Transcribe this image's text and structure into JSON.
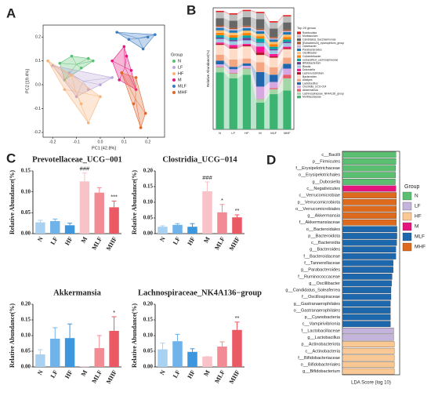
{
  "chart_data": [
    {
      "type": "scatter",
      "panel": "A",
      "xlabel": "PC1 [42.8%]",
      "ylabel": "PC2 [19.4%]",
      "legend_title": "Group",
      "xlim": [
        -0.24,
        0.27
      ],
      "ylim": [
        -0.22,
        0.25
      ],
      "xticks": [
        -0.2,
        -0.1,
        {
          "value": 0,
          "label": "0.0"
        },
        0.1,
        0.2
      ],
      "yticks": [
        -0.2,
        -0.1,
        {
          "value": 0,
          "label": "0.0"
        },
        0.1,
        0.2
      ],
      "series": [
        {
          "name": "N",
          "color": "#5bbf72",
          "x": [
            -0.17,
            -0.12,
            -0.05,
            -0.15,
            -0.03,
            -0.08
          ],
          "values": [
            0.09,
            0.12,
            0.11,
            0.02,
            0.1,
            0.07
          ]
        },
        {
          "name": "LF",
          "color": "#b9a6d8",
          "x": [
            -0.2,
            -0.13,
            -0.05,
            0.05,
            -0.1,
            0.0
          ],
          "values": [
            0.08,
            0.05,
            -0.02,
            0.03,
            -0.05,
            0.0
          ]
        },
        {
          "name": "HF",
          "color": "#f7b37a",
          "x": [
            -0.22,
            -0.15,
            -0.08,
            -0.05,
            -0.12,
            0.0
          ],
          "values": [
            0.1,
            -0.02,
            -0.08,
            -0.16,
            0.04,
            -0.05
          ]
        },
        {
          "name": "M",
          "color": "#e4157c",
          "x": [
            0.05,
            0.1,
            0.13,
            0.08,
            0.15,
            0.11
          ],
          "values": [
            0.1,
            0.16,
            0.06,
            0.02,
            -0.02,
            0.12
          ]
        },
        {
          "name": "MLF",
          "color": "#3a7cc3",
          "x": [
            0.07,
            0.2,
            0.18,
            0.12,
            0.23
          ],
          "values": [
            0.22,
            0.2,
            0.15,
            0.19,
            0.21
          ]
        },
        {
          "name": "MHF",
          "color": "#e0652a",
          "x": [
            0.09,
            0.14,
            0.19,
            0.15,
            0.17
          ],
          "values": [
            0.05,
            -0.08,
            -0.12,
            0.03,
            -0.18
          ]
        }
      ]
    },
    {
      "type": "stacked",
      "panel": "B",
      "ylabel": "Relative Abundance(%)",
      "legend_title": "Top 20 genus",
      "ylim": [
        0,
        100
      ],
      "categories": [
        "N",
        "LF",
        "HF",
        "M",
        "MLF",
        "MHF"
      ],
      "series": [
        {
          "name": "Muribaculaceae",
          "color": "#3cb371",
          "values": [
            47,
            42,
            45,
            22,
            29,
            32
          ]
        },
        {
          "name": "Lachnospiraceae_NK4A136_group",
          "color": "#a5d6a7",
          "values": [
            4,
            4,
            5,
            3,
            4,
            10
          ]
        },
        {
          "name": "Akkermansia",
          "color": "#e65c6a",
          "values": [
            0.5,
            0.5,
            0.3,
            0.2,
            1,
            3
          ]
        },
        {
          "name": "Clostridia_UCG-014",
          "color": "#d6a7e0",
          "values": [
            2,
            3,
            2,
            10,
            5,
            5
          ]
        },
        {
          "name": "Lactobacillus",
          "color": "#2166ac",
          "values": [
            3,
            2,
            2,
            12,
            6,
            4
          ]
        },
        {
          "name": "Alistipes",
          "color": "#f4a582",
          "values": [
            5,
            6,
            4,
            8,
            6,
            5
          ]
        },
        {
          "name": "Bacteroides",
          "color": "#fddbc7",
          "values": [
            8,
            9,
            10,
            6,
            8,
            7
          ]
        },
        {
          "name": "Lachnoclostridium",
          "color": "#b2182b",
          "values": [
            1,
            1,
            1,
            2,
            1,
            1
          ]
        },
        {
          "name": "Dubosiella",
          "color": "#ff1493",
          "values": [
            1,
            2,
            1,
            5,
            2,
            1
          ]
        },
        {
          "name": "Blautia",
          "color": "#9ecae1",
          "values": [
            3,
            3,
            3,
            3,
            3,
            3
          ]
        },
        {
          "name": "Bifidobacterium",
          "color": "#6a3d9a",
          "values": [
            1,
            1,
            2,
            0.5,
            1,
            1
          ]
        },
        {
          "name": "unclassified_Lachnospiraceae",
          "color": "#00a6a6",
          "values": [
            2,
            2,
            2,
            3,
            2,
            2
          ]
        },
        {
          "name": "Colidextribacter",
          "color": "#ff7f00",
          "values": [
            2,
            2,
            2,
            2,
            2,
            2
          ]
        },
        {
          "name": "Oscillibacter",
          "color": "#fdbf6f",
          "values": [
            2,
            2,
            2,
            2,
            2,
            2
          ]
        },
        {
          "name": "Parabacteroides",
          "color": "#1f78b4",
          "values": [
            2,
            2,
            2,
            2,
            2,
            2
          ]
        },
        {
          "name": "Odoribacter",
          "color": "#cab2d6",
          "values": [
            1,
            1,
            1,
            1,
            1,
            1
          ]
        },
        {
          "name": "[Eubacterium]_xylanophilum_group",
          "color": "#b15928",
          "values": [
            1,
            1,
            1,
            1,
            1,
            1
          ]
        },
        {
          "name": "Candidatus_Saccharimonas",
          "color": "#666666",
          "values": [
            6,
            6,
            7,
            8,
            7,
            6
          ]
        },
        {
          "name": "Muribaculum",
          "color": "#bdbdbd",
          "values": [
            5,
            5,
            5,
            5,
            5,
            5
          ]
        },
        {
          "name": "Romboutsia",
          "color": "#e31a1c",
          "values": [
            1,
            1,
            1,
            1,
            1,
            1
          ]
        }
      ]
    },
    {
      "type": "barerr",
      "panel": "C",
      "title": "Prevotellaceae_UCG−001",
      "ylabel": "Relative Abundance(%)",
      "categories": [
        "N",
        "LF",
        "HF",
        "M",
        "MLF",
        "MHF"
      ],
      "colors": [
        "#a9d2f2",
        "#6fb3ea",
        "#3d97de",
        "#f8c3c8",
        "#f28b93",
        "#ea5964"
      ],
      "values": [
        0.027,
        0.03,
        0.02,
        0.125,
        0.098,
        0.063
      ],
      "errors": [
        0.005,
        0.005,
        0.005,
        0.02,
        0.012,
        0.015
      ],
      "annotations": [
        null,
        null,
        null,
        "###",
        null,
        "***"
      ],
      "ylim": [
        0,
        0.15
      ],
      "yticks": [
        {
          "value": 0,
          "label": "0.00"
        },
        {
          "value": 0.05,
          "label": "0.05"
        },
        {
          "value": 0.1,
          "label": "0.10"
        },
        {
          "value": 0.15,
          "label": "0.15"
        }
      ]
    },
    {
      "type": "barerr",
      "title": "Clostridia_UCG−014",
      "ylabel": "Relative Abundance(%)",
      "categories": [
        "N",
        "LF",
        "HF",
        "M",
        "MLF",
        "MHF"
      ],
      "colors": [
        "#a9d2f2",
        "#6fb3ea",
        "#3d97de",
        "#f8c3c8",
        "#f28b93",
        "#ea5964"
      ],
      "values": [
        0.022,
        0.028,
        0.022,
        0.135,
        0.068,
        0.052
      ],
      "errors": [
        0.003,
        0.004,
        0.01,
        0.03,
        0.025,
        0.008
      ],
      "annotations": [
        null,
        null,
        null,
        "###",
        "*",
        "**"
      ],
      "ylim": [
        0,
        0.2
      ],
      "yticks": [
        {
          "value": 0,
          "label": "0.00"
        },
        {
          "value": 0.05,
          "label": "0.05"
        },
        {
          "value": 0.1,
          "label": "0.10"
        },
        {
          "value": 0.15,
          "label": "0.15"
        },
        {
          "value": 0.2,
          "label": "0.20"
        }
      ]
    },
    {
      "type": "barerr",
      "title": "Akkermansia",
      "ylabel": "Relative Abundance(%)",
      "categories": [
        "N",
        "LF",
        "HF",
        "M",
        "MLF",
        "MHF"
      ],
      "colors": [
        "#a9d2f2",
        "#6fb3ea",
        "#3d97de",
        "#f8c3c8",
        "#f28b93",
        "#ea5964"
      ],
      "values": [
        0.04,
        0.09,
        0.092,
        0.001,
        0.06,
        0.115
      ],
      "errors": [
        0.015,
        0.035,
        0.045,
        0,
        0.04,
        0.045
      ],
      "annotations": [
        null,
        null,
        null,
        null,
        null,
        "*"
      ],
      "ylim": [
        0,
        0.2
      ],
      "yticks": [
        {
          "value": 0,
          "label": "0.00"
        },
        {
          "value": 0.05,
          "label": "0.05"
        },
        {
          "value": 0.1,
          "label": "0.10"
        },
        {
          "value": 0.15,
          "label": "0.15"
        },
        {
          "value": 0.2,
          "label": "0.20"
        }
      ]
    },
    {
      "type": "barerr",
      "title": "Lachnospiraceae_NK4A136−group",
      "ylabel": "Relative Abundance(%)",
      "categories": [
        "N",
        "LF",
        "HF",
        "M",
        "MLF",
        "MHF"
      ],
      "colors": [
        "#a9d2f2",
        "#6fb3ea",
        "#3d97de",
        "#f8c3c8",
        "#f28b93",
        "#ea5964"
      ],
      "values": [
        0.056,
        0.082,
        0.048,
        0.033,
        0.065,
        0.118
      ],
      "errors": [
        0.02,
        0.022,
        0.01,
        0,
        0.015,
        0.025
      ],
      "annotations": [
        null,
        null,
        null,
        null,
        null,
        "**"
      ],
      "ylim": [
        0,
        0.2
      ],
      "yticks": [
        {
          "value": 0,
          "label": "0.00"
        },
        {
          "value": 0.05,
          "label": "0.05"
        },
        {
          "value": 0.1,
          "label": "0.10"
        },
        {
          "value": 0.15,
          "label": "0.15"
        },
        {
          "value": 0.2,
          "label": "0.20"
        }
      ]
    },
    {
      "type": "lda",
      "panel": "D",
      "xlabel": "LDA Score (log 10)",
      "legend_title": "Group",
      "xlim": [
        0,
        5.3
      ],
      "legend": [
        {
          "name": "N",
          "color": "#5bbf72"
        },
        {
          "name": "LF",
          "color": "#c4b4dc"
        },
        {
          "name": "HF",
          "color": "#fac894"
        },
        {
          "name": "M",
          "color": "#e4157c"
        },
        {
          "name": "MLF",
          "color": "#1d67ad"
        },
        {
          "name": "MHF",
          "color": "#dd6a1d"
        }
      ],
      "categories": [
        "c__Bacilli",
        "p__Firmicutes",
        "f__Erysipelotrichaceae",
        "o__Erysipelotrichales",
        "g__Dubosiella",
        "c__Negativicutes",
        "c__Verrucomicrobiae",
        "p__Verrucomicrobiota",
        "o__Verrucomicrobiales",
        "g__Akkermansia",
        "f__Akkermansiaceae",
        "o__Bacteroidales",
        "p__Bacteroidota",
        "c__Bacteroidia",
        "g__Bacteroides",
        "f__Bacteroidaceae",
        "f__Tannerellaceae",
        "g__Parabacteroides",
        "f__Ruminococcaceae",
        "g__Oscillibacter",
        "g__Candidatus_Soleaferrea",
        "f__Oscillospiraceae",
        "g__Gastranaerophilales",
        "o__Gastranaerophilales",
        "p__Cyanobacteria",
        "c__Vampirivibrionia",
        "f__Lactobacillaceae",
        "g__Lactobacillus",
        "p__Actinobacteriota",
        "c__Actinobacteria",
        "f__Bifidobacteriaceae",
        "o__Bifidobacteriales",
        "g__Bifidobacterium"
      ],
      "groups": [
        "N",
        "N",
        "N",
        "N",
        "N",
        "M",
        "MHF",
        "MHF",
        "MHF",
        "MHF",
        "MHF",
        "MLF",
        "MLF",
        "MLF",
        "MLF",
        "MLF",
        "MLF",
        "MLF",
        "MLF",
        "MLF",
        "MLF",
        "MLF",
        "MLF",
        "MLF",
        "MLF",
        "MLF",
        "LF",
        "LF",
        "HF",
        "HF",
        "HF",
        "HF",
        "HF"
      ],
      "values": [
        4.95,
        4.95,
        4.92,
        4.92,
        4.9,
        4.95,
        5.0,
        5.0,
        5.0,
        5.0,
        5.0,
        5.05,
        5.05,
        5.03,
        4.95,
        4.95,
        4.7,
        4.7,
        4.6,
        4.55,
        4.5,
        4.5,
        4.45,
        4.45,
        4.45,
        4.45,
        4.75,
        4.75,
        4.8,
        4.8,
        4.8,
        4.8,
        4.8
      ]
    }
  ]
}
